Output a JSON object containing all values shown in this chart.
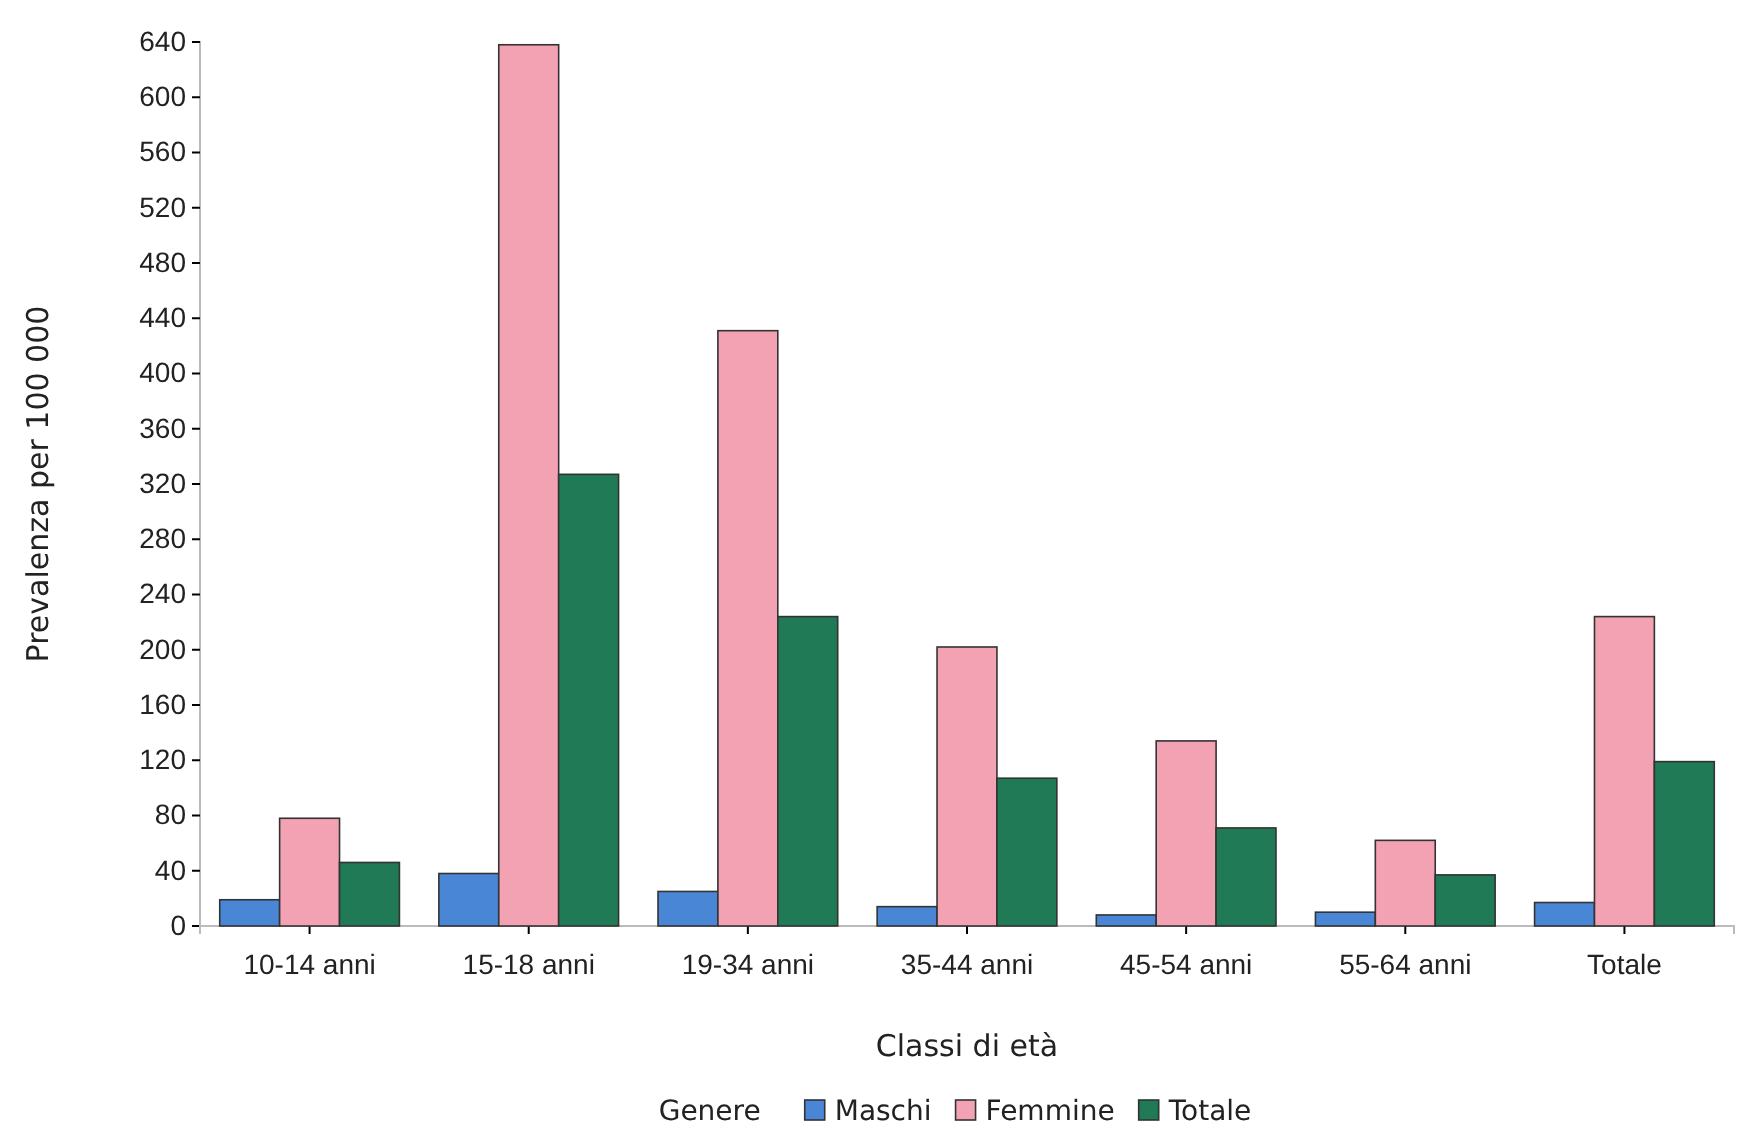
{
  "chart_data": {
    "type": "bar",
    "xlabel": "Classi di età",
    "ylabel": "Prevalenza per 100 000",
    "legend_title": "Genere",
    "legend": "bottom",
    "categories": [
      "10-14 anni",
      "15-18 anni",
      "19-34 anni",
      "35-44 anni",
      "45-54 anni",
      "55-64 anni",
      "Totale"
    ],
    "series": [
      {
        "name": "Maschi",
        "color": "#4a86d6",
        "values": [
          19,
          38,
          25,
          14,
          8,
          10,
          17
        ]
      },
      {
        "name": "Femmine",
        "color": "#f2a2b2",
        "values": [
          78,
          638,
          431,
          202,
          134,
          62,
          224
        ]
      },
      {
        "name": "Totale",
        "color": "#1f7a55",
        "values": [
          46,
          327,
          224,
          107,
          71,
          37,
          119
        ]
      }
    ],
    "ylim": [
      0,
      640
    ],
    "yticks": [
      0,
      40,
      80,
      120,
      160,
      200,
      240,
      280,
      320,
      360,
      400,
      440,
      480,
      520,
      560,
      600,
      640
    ]
  }
}
